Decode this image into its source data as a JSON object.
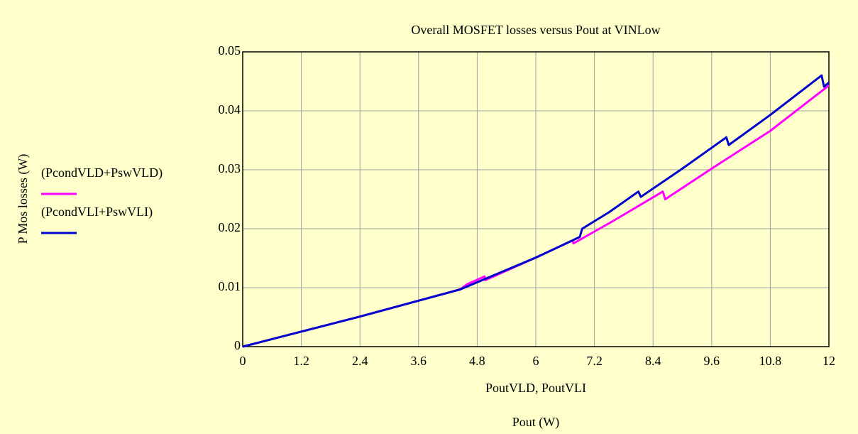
{
  "chart_data": {
    "type": "line",
    "title": "Overall MOSFET losses versus Pout at VINLow",
    "x_label": "PoutVLD, PoutVLI",
    "x_label2": "Pout (W)",
    "y_label": "P Mos losses (W)",
    "xlim": [
      0,
      12
    ],
    "xticks": [
      0,
      1.2,
      2.4,
      3.6,
      4.8,
      6,
      7.2,
      8.4,
      9.6,
      10.8,
      12
    ],
    "ylim": [
      0,
      0.05
    ],
    "yticks": [
      0,
      0.01,
      0.02,
      0.03,
      0.04,
      0.05
    ],
    "grid": true,
    "legend": "left",
    "series": [
      {
        "name": "(PcondVLD+PswVLD)",
        "color": "#ff00ff",
        "x": [
          0,
          2.4,
          4.45,
          4.6,
          4.95,
          4.97,
          6.0,
          6.75,
          6.77,
          7.6,
          8.6,
          8.65,
          9.6,
          10.8,
          12
        ],
        "values": [
          0,
          0.0051,
          0.0097,
          0.0106,
          0.0119,
          0.0113,
          0.0151,
          0.018,
          0.0175,
          0.0214,
          0.0263,
          0.025,
          0.0302,
          0.0366,
          0.0443
        ]
      },
      {
        "name": "(PcondVLI+PswVLI)",
        "color": "#0000cc",
        "x": [
          0,
          2.4,
          4.45,
          6.0,
          6.9,
          6.95,
          7.5,
          8.1,
          8.15,
          9.0,
          9.9,
          9.95,
          10.8,
          11.85,
          11.9,
          12
        ],
        "values": [
          0,
          0.0051,
          0.0097,
          0.0151,
          0.0186,
          0.02,
          0.0228,
          0.0263,
          0.0254,
          0.0302,
          0.0355,
          0.0342,
          0.0393,
          0.046,
          0.0441,
          0.0448
        ]
      }
    ]
  }
}
